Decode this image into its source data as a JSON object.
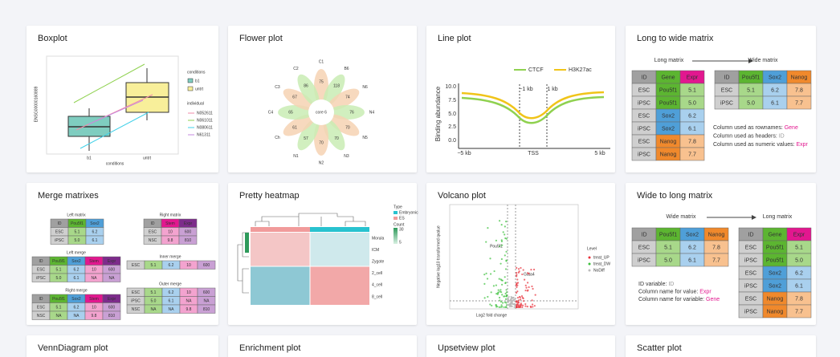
{
  "cards": [
    {
      "title": "Boxplot"
    },
    {
      "title": "Flower plot"
    },
    {
      "title": "Line plot"
    },
    {
      "title": "Long to wide matrix"
    },
    {
      "title": "Merge matrixes"
    },
    {
      "title": "Pretty heatmap"
    },
    {
      "title": "Volcano plot"
    },
    {
      "title": "Wide to long matrix"
    },
    {
      "title": "VennDiagram plot"
    },
    {
      "title": "Enrichment plot"
    },
    {
      "title": "Upsetview plot"
    },
    {
      "title": "Scatter plot"
    }
  ],
  "boxplot": {
    "ylabel": "ENSG00000160889",
    "xlabel": "conditions",
    "xticks": [
      "b1",
      "untrt"
    ],
    "legend_title": "conditions",
    "legend": [
      "b1",
      "untrt"
    ],
    "individual_title": "individual",
    "individuals": [
      "N052611",
      "N061011",
      "N080611",
      "N61311"
    ]
  },
  "flower": {
    "core": "core 6",
    "petals": [
      {
        "name": "C1",
        "count": "75"
      },
      {
        "name": "B6",
        "count": "118"
      },
      {
        "name": "N6",
        "count": "74"
      },
      {
        "name": "N4",
        "count": "76"
      },
      {
        "name": "N5",
        "count": "70"
      },
      {
        "name": "N3",
        "count": "70"
      },
      {
        "name": "N2",
        "count": "70"
      },
      {
        "name": "N1",
        "count": "57"
      },
      {
        "name": "Ch",
        "count": "61"
      },
      {
        "name": "C4",
        "count": "65"
      },
      {
        "name": "C3",
        "count": "67"
      },
      {
        "name": "C2",
        "count": "86"
      }
    ]
  },
  "line_plot": {
    "legend": [
      "CTCF",
      "H3K27ac"
    ],
    "ylabel": "Binding abundance",
    "yticks": [
      "10.0",
      "7.5",
      "5.0",
      "2.5",
      "0.0"
    ],
    "xticks": [
      "−5 kb",
      "TSS",
      "5 kb"
    ],
    "marks": [
      "−1 kb",
      "1 kb"
    ]
  },
  "long_to_wide": {
    "from": "Long matrix",
    "to": "Wide matrix",
    "long": {
      "rows": [
        [
          "ID",
          "Gene",
          "Expr"
        ],
        [
          "ESC",
          "Pou5f1",
          "5.1"
        ],
        [
          "iPSC",
          "Pou5f1",
          "5.0"
        ],
        [
          "ESC",
          "Sox2",
          "6.2"
        ],
        [
          "iPSC",
          "Sox2",
          "6.1"
        ],
        [
          "ESC",
          "Nanog",
          "7.8"
        ],
        [
          "iPSC",
          "Nanog",
          "7.7"
        ]
      ],
      "colors": [
        [
          "#a0a0a0",
          "#5cb531",
          "#e2178f"
        ],
        [
          "#cfcfcf",
          "#5cb531",
          "#a8d88a"
        ],
        [
          "#cfcfcf",
          "#5cb531",
          "#a8d88a"
        ],
        [
          "#cfcfcf",
          "#4f9fd8",
          "#a9d0ee"
        ],
        [
          "#cfcfcf",
          "#4f9fd8",
          "#a9d0ee"
        ],
        [
          "#cfcfcf",
          "#f0892c",
          "#f8c18f"
        ],
        [
          "#cfcfcf",
          "#f0892c",
          "#f8c18f"
        ]
      ]
    },
    "wide": {
      "rows": [
        [
          "ID",
          "Pou5f1",
          "Sox2",
          "Nanog"
        ],
        [
          "ESC",
          "5.1",
          "6.2",
          "7.8"
        ],
        [
          "iPSC",
          "5.0",
          "6.1",
          "7.7"
        ]
      ],
      "colors": [
        [
          "#a0a0a0",
          "#5cb531",
          "#4f9fd8",
          "#f0892c"
        ],
        [
          "#cfcfcf",
          "#a8d88a",
          "#a9d0ee",
          "#f8c18f"
        ],
        [
          "#cfcfcf",
          "#a8d88a",
          "#a9d0ee",
          "#f8c18f"
        ]
      ]
    },
    "notes": [
      {
        "label": "Column used as rownames: ",
        "value": "Gene",
        "color": "#e2178f"
      },
      {
        "label": "Column used as headers: ",
        "value": "ID",
        "color": "#999999"
      },
      {
        "label": "Column used as numeric values: ",
        "value": "Expr",
        "color": "#e2178f"
      }
    ]
  },
  "wide_to_long": {
    "from": "Wide matrix",
    "to": "Long matrix",
    "wide": {
      "rows": [
        [
          "ID",
          "Pou5f1",
          "Sox2",
          "Nanog"
        ],
        [
          "ESC",
          "5.1",
          "6.2",
          "7.8"
        ],
        [
          "iPSC",
          "5.0",
          "6.1",
          "7.7"
        ]
      ],
      "colors": [
        [
          "#a0a0a0",
          "#5cb531",
          "#4f9fd8",
          "#f0892c"
        ],
        [
          "#cfcfcf",
          "#a8d88a",
          "#a9d0ee",
          "#f8c18f"
        ],
        [
          "#cfcfcf",
          "#a8d88a",
          "#a9d0ee",
          "#f8c18f"
        ]
      ]
    },
    "long": {
      "rows": [
        [
          "ID",
          "Gene",
          "Expr"
        ],
        [
          "ESC",
          "Pou5f1",
          "5.1"
        ],
        [
          "iPSC",
          "Pou5f1",
          "5.0"
        ],
        [
          "ESC",
          "Sox2",
          "6.2"
        ],
        [
          "iPSC",
          "Sox2",
          "6.1"
        ],
        [
          "ESC",
          "Nanog",
          "7.8"
        ],
        [
          "iPSC",
          "Nanog",
          "7.7"
        ]
      ],
      "colors": [
        [
          "#a0a0a0",
          "#5cb531",
          "#e2178f"
        ],
        [
          "#cfcfcf",
          "#5cb531",
          "#a8d88a"
        ],
        [
          "#cfcfcf",
          "#5cb531",
          "#a8d88a"
        ],
        [
          "#cfcfcf",
          "#4f9fd8",
          "#a9d0ee"
        ],
        [
          "#cfcfcf",
          "#4f9fd8",
          "#a9d0ee"
        ],
        [
          "#cfcfcf",
          "#f0892c",
          "#f8c18f"
        ],
        [
          "#cfcfcf",
          "#f0892c",
          "#f8c18f"
        ]
      ]
    },
    "notes": [
      {
        "label": "ID variable: ",
        "value": "ID",
        "color": "#999999"
      },
      {
        "label": "Column name for value: ",
        "value": "Expr",
        "color": "#e2178f"
      },
      {
        "label": "Column name for variable: ",
        "value": "Gene",
        "color": "#e2178f"
      }
    ]
  },
  "merge": {
    "tables": [
      {
        "title": "Left matrix",
        "rows": [
          [
            "ID",
            "Pou5f1",
            "Sox2"
          ],
          [
            "ESC",
            "5.1",
            "6.2"
          ],
          [
            "iPSC",
            "5.0",
            "6.1"
          ]
        ],
        "colors": [
          [
            "#a0a0a0",
            "#5cb531",
            "#4f9fd8"
          ],
          [
            "#cfcfcf",
            "#a8d88a",
            "#a9d0ee"
          ],
          [
            "#cfcfcf",
            "#a8d88a",
            "#a9d0ee"
          ]
        ]
      },
      {
        "title": "Right matrix",
        "rows": [
          [
            "ID",
            "Stem",
            "Expr"
          ],
          [
            "ESC",
            "10",
            "600"
          ],
          [
            "NSC",
            "9.8",
            "810"
          ]
        ],
        "colors": [
          [
            "#a0a0a0",
            "#e2178f",
            "#7d2b8b"
          ],
          [
            "#cfcfcf",
            "#f3a3cf",
            "#c9a0d4"
          ],
          [
            "#cfcfcf",
            "#f3a3cf",
            "#c9a0d4"
          ]
        ]
      },
      {
        "title": "Left merge",
        "rows": [
          [
            "ID",
            "Pou5f1",
            "Sox2",
            "Stem",
            "Expr"
          ],
          [
            "ESC",
            "5.1",
            "6.2",
            "10",
            "600"
          ],
          [
            "iPSC",
            "5.0",
            "6.1",
            "NA",
            "NA"
          ]
        ],
        "colors": [
          [
            "#a0a0a0",
            "#5cb531",
            "#4f9fd8",
            "#e2178f",
            "#7d2b8b"
          ],
          [
            "#cfcfcf",
            "#a8d88a",
            "#a9d0ee",
            "#f3a3cf",
            "#c9a0d4"
          ],
          [
            "#cfcfcf",
            "#a8d88a",
            "#a9d0ee",
            "#f3a3cf",
            "#c9a0d4"
          ]
        ]
      },
      {
        "title": "Inner merge",
        "rows": [
          [
            "ESC",
            "5.1",
            "6.2",
            "10",
            "600"
          ]
        ],
        "colors": [
          [
            "#cfcfcf",
            "#a8d88a",
            "#a9d0ee",
            "#f3a3cf",
            "#c9a0d4"
          ]
        ]
      },
      {
        "title": "Right merge",
        "rows": [
          [
            "ID",
            "Pou5f1",
            "Sox2",
            "Stem",
            "Expr"
          ],
          [
            "ESC",
            "5.1",
            "6.2",
            "10",
            "600"
          ],
          [
            "NSC",
            "NA",
            "NA",
            "9.8",
            "810"
          ]
        ],
        "colors": [
          [
            "#a0a0a0",
            "#5cb531",
            "#4f9fd8",
            "#e2178f",
            "#7d2b8b"
          ],
          [
            "#cfcfcf",
            "#a8d88a",
            "#a9d0ee",
            "#f3a3cf",
            "#c9a0d4"
          ],
          [
            "#cfcfcf",
            "#a8d88a",
            "#a9d0ee",
            "#f3a3cf",
            "#c9a0d4"
          ]
        ]
      },
      {
        "title": "Outer merge",
        "rows": [
          [
            "ESC",
            "5.1",
            "6.2",
            "10",
            "600"
          ],
          [
            "iPSC",
            "5.0",
            "6.1",
            "NA",
            "NA"
          ],
          [
            "NSC",
            "NA",
            "NA",
            "9.8",
            "810"
          ]
        ],
        "colors": [
          [
            "#cfcfcf",
            "#a8d88a",
            "#a9d0ee",
            "#f3a3cf",
            "#c9a0d4"
          ],
          [
            "#cfcfcf",
            "#a8d88a",
            "#a9d0ee",
            "#f3a3cf",
            "#c9a0d4"
          ],
          [
            "#cfcfcf",
            "#a8d88a",
            "#a9d0ee",
            "#f3a3cf",
            "#c9a0d4"
          ]
        ]
      }
    ]
  },
  "heatmap": {
    "rows": [
      "Morula",
      "ICM",
      "Zygote",
      "2_cell",
      "4_cell",
      "8_cell"
    ],
    "type_title": "Type",
    "types": [
      "Embryonic",
      "ES"
    ],
    "count_title": "Count",
    "count_ticks": [
      "30",
      "5"
    ]
  },
  "volcano": {
    "xlabel": "Log2 fold change",
    "ylabel": "Negative log10 transformed qvalue",
    "genes": [
      "Pou5f1",
      "Gata4"
    ],
    "legend_title": "Level",
    "levels": [
      "treat_UP",
      "treat_DW",
      "NoDiff"
    ]
  }
}
